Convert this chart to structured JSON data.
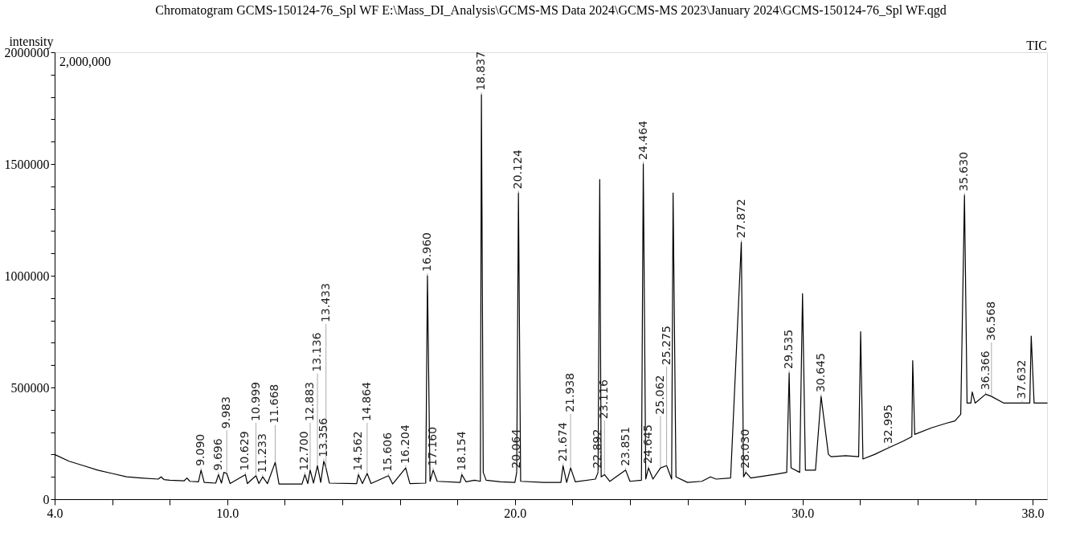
{
  "chart_data": {
    "type": "line",
    "title": "Chromatogram GCMS-150124-76_Spl  WF E:\\Mass_DI_Analysis\\GCMS-MS Data 2024\\GCMS-MS 2023\\January 2024\\GCMS-150124-76_Spl  WF.qgd",
    "ylabel": "intensity",
    "grid": false,
    "marker": "none",
    "line_style": "solid",
    "xlim": [
      4.0,
      38.5
    ],
    "ylim": [
      0,
      2000000
    ],
    "xticks": [
      {
        "value": 4,
        "label": "4.0"
      },
      {
        "value": 6,
        "label": null
      },
      {
        "value": 8,
        "label": null
      },
      {
        "value": 10,
        "label": "10.0"
      },
      {
        "value": 12,
        "label": null
      },
      {
        "value": 14,
        "label": null
      },
      {
        "value": 16,
        "label": null
      },
      {
        "value": 18,
        "label": null
      },
      {
        "value": 20,
        "label": "20.0"
      },
      {
        "value": 22,
        "label": null
      },
      {
        "value": 24,
        "label": null
      },
      {
        "value": 26,
        "label": null
      },
      {
        "value": 28,
        "label": null
      },
      {
        "value": 30,
        "label": "30.0"
      },
      {
        "value": 32,
        "label": null
      },
      {
        "value": 34,
        "label": null
      },
      {
        "value": 36,
        "label": null
      },
      {
        "value": 38,
        "label": "38.0"
      }
    ],
    "yticks": [
      0,
      {
        "value": 100000,
        "label": null
      },
      {
        "value": 200000,
        "label": null
      },
      {
        "value": 300000,
        "label": null
      },
      {
        "value": 400000,
        "label": null
      },
      500000,
      {
        "value": 600000,
        "label": null
      },
      {
        "value": 700000,
        "label": null
      },
      {
        "value": 800000,
        "label": null
      },
      {
        "value": 900000,
        "label": null
      },
      1000000,
      {
        "value": 1100000,
        "label": null
      },
      {
        "value": 1200000,
        "label": null
      },
      {
        "value": 1300000,
        "label": null
      },
      {
        "value": 1400000,
        "label": null
      },
      1500000,
      {
        "value": 1600000,
        "label": null
      },
      {
        "value": 1700000,
        "label": null
      },
      {
        "value": 1800000,
        "label": null
      },
      {
        "value": 1900000,
        "label": null
      },
      2000000
    ],
    "series": [
      {
        "color": "#000000",
        "x": [
          4.0,
          4.5,
          5.0,
          5.5,
          6.0,
          6.5,
          7.0,
          7.6,
          7.7,
          7.8,
          8.0,
          8.5,
          8.6,
          8.7,
          9.0,
          9.09,
          9.2,
          9.6,
          9.696,
          9.8,
          9.883,
          9.983,
          10.1,
          10.629,
          10.7,
          10.999,
          11.1,
          11.233,
          11.4,
          11.668,
          11.8,
          12.6,
          12.7,
          12.8,
          12.883,
          13.0,
          13.136,
          13.25,
          13.356,
          13.433,
          13.55,
          14.5,
          14.562,
          14.7,
          14.864,
          15.0,
          15.606,
          15.75,
          16.204,
          16.35,
          16.9,
          16.96,
          17.05,
          17.16,
          17.3,
          18.1,
          18.154,
          18.3,
          18.6,
          18.8,
          18.837,
          18.9,
          19.0,
          19.5,
          20.0,
          20.064,
          20.124,
          20.2,
          21.0,
          21.6,
          21.674,
          21.8,
          21.938,
          22.1,
          22.8,
          22.892,
          22.95,
          23.0,
          23.116,
          23.3,
          23.851,
          24.0,
          24.4,
          24.464,
          24.55,
          24.645,
          24.8,
          25.062,
          25.275,
          25.45,
          25.5,
          25.6,
          26.0,
          26.5,
          26.8,
          27.0,
          27.5,
          27.872,
          27.95,
          28.03,
          28.2,
          29.0,
          29.45,
          29.535,
          29.6,
          29.9,
          30.0,
          30.1,
          30.45,
          30.645,
          30.9,
          31.0,
          31.5,
          31.95,
          32.02,
          32.1,
          32.5,
          32.995,
          33.5,
          33.8,
          33.83,
          33.9,
          34.5,
          35.0,
          35.3,
          35.5,
          35.63,
          35.72,
          35.85,
          35.9,
          36.0,
          36.366,
          36.568,
          37.0,
          37.632,
          37.9,
          37.95,
          38.05,
          38.5
        ],
        "values": [
          200000,
          170000,
          150000,
          130000,
          115000,
          100000,
          95000,
          90000,
          100000,
          88000,
          85000,
          82000,
          95000,
          80000,
          78000,
          130000,
          75000,
          72000,
          110000,
          72000,
          120000,
          115000,
          70000,
          110000,
          70000,
          105000,
          70000,
          100000,
          70000,
          165000,
          68000,
          68000,
          110000,
          70000,
          130000,
          72000,
          150000,
          75000,
          170000,
          140000,
          72000,
          70000,
          110000,
          70000,
          115000,
          70000,
          105000,
          68000,
          140000,
          70000,
          72000,
          1000000,
          80000,
          130000,
          80000,
          75000,
          110000,
          78000,
          85000,
          80000,
          1810000,
          120000,
          85000,
          78000,
          75000,
          120000,
          1370000,
          80000,
          75000,
          75000,
          150000,
          75000,
          140000,
          78000,
          90000,
          120000,
          1430000,
          100000,
          110000,
          80000,
          130000,
          80000,
          85000,
          1500000,
          90000,
          140000,
          90000,
          140000,
          150000,
          90000,
          1370000,
          100000,
          75000,
          80000,
          100000,
          90000,
          95000,
          1150000,
          100000,
          120000,
          95000,
          110000,
          120000,
          565000,
          140000,
          120000,
          920000,
          130000,
          130000,
          460000,
          200000,
          190000,
          195000,
          190000,
          750000,
          180000,
          200000,
          230000,
          260000,
          280000,
          620000,
          290000,
          320000,
          340000,
          350000,
          380000,
          1360000,
          430000,
          430000,
          480000,
          430000,
          470000,
          460000,
          430000,
          430000,
          430000,
          730000,
          430000,
          430000
        ]
      }
    ],
    "annotations": [
      "2,000,000",
      "TIC",
      {
        "text": "9.090",
        "x": 9.09,
        "y": 130000
      },
      {
        "text": "9.696",
        "x": 9.696,
        "y": 110000
      },
      {
        "text": "9.983",
        "x": 9.983,
        "y": 115000
      },
      {
        "text": "10.629",
        "x": 10.629,
        "y": 110000
      },
      {
        "text": "10.999",
        "x": 10.999,
        "y": 105000
      },
      {
        "text": "11.233",
        "x": 11.233,
        "y": 100000
      },
      {
        "text": "11.668",
        "x": 11.668,
        "y": 165000
      },
      {
        "text": "12.700",
        "x": 12.7,
        "y": 110000
      },
      {
        "text": "12.883",
        "x": 12.883,
        "y": 130000
      },
      {
        "text": "13.136",
        "x": 13.136,
        "y": 150000
      },
      {
        "text": "13.356",
        "x": 13.356,
        "y": 170000
      },
      {
        "text": "13.433",
        "x": 13.433,
        "y": 140000
      },
      {
        "text": "14.562",
        "x": 14.562,
        "y": 110000
      },
      {
        "text": "14.864",
        "x": 14.864,
        "y": 115000
      },
      {
        "text": "15.606",
        "x": 15.606,
        "y": 105000
      },
      {
        "text": "16.204",
        "x": 16.204,
        "y": 140000
      },
      {
        "text": "16.960",
        "x": 16.96,
        "y": 1000000
      },
      {
        "text": "17.160",
        "x": 17.16,
        "y": 130000
      },
      {
        "text": "18.154",
        "x": 18.154,
        "y": 110000
      },
      {
        "text": "18.837",
        "x": 18.837,
        "y": 1810000
      },
      {
        "text": "20.064",
        "x": 20.064,
        "y": 120000
      },
      {
        "text": "20.124",
        "x": 20.124,
        "y": 1370000
      },
      {
        "text": "21.674",
        "x": 21.674,
        "y": 150000
      },
      {
        "text": "21.938",
        "x": 21.938,
        "y": 140000
      },
      {
        "text": "22.892",
        "x": 22.892,
        "y": 120000
      },
      {
        "text": "23.116",
        "x": 23.116,
        "y": 110000
      },
      {
        "text": "23.851",
        "x": 23.851,
        "y": 130000
      },
      {
        "text": "24.464",
        "x": 24.464,
        "y": 1500000
      },
      {
        "text": "24.645",
        "x": 24.645,
        "y": 140000
      },
      {
        "text": "25.062",
        "x": 25.062,
        "y": 140000
      },
      {
        "text": "25.275",
        "x": 25.275,
        "y": 150000
      },
      {
        "text": "27.872",
        "x": 27.872,
        "y": 1150000
      },
      {
        "text": "28.030",
        "x": 28.03,
        "y": 120000
      },
      {
        "text": "29.535",
        "x": 29.535,
        "y": 565000
      },
      {
        "text": "30.645",
        "x": 30.645,
        "y": 460000
      },
      {
        "text": "32.995",
        "x": 32.995,
        "y": 230000
      },
      {
        "text": "35.630",
        "x": 35.63,
        "y": 1360000
      },
      {
        "text": "36.366",
        "x": 36.366,
        "y": 470000
      },
      {
        "text": "36.568",
        "x": 36.568,
        "y": 460000
      },
      {
        "text": "37.632",
        "x": 37.632,
        "y": 430000
      }
    ]
  }
}
